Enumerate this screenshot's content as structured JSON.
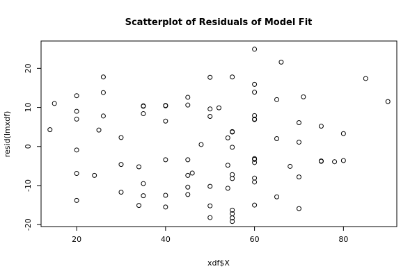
{
  "chart_data": {
    "type": "scatter",
    "title": "Scatterplot of Residuals of Model Fit",
    "xlabel": "xdf$X",
    "ylabel": "resid(lmxdf)",
    "xlim": [
      12,
      92
    ],
    "ylim": [
      -20.5,
      27
    ],
    "xticks": [
      20,
      40,
      60,
      80
    ],
    "yticks": [
      -20,
      -10,
      0,
      10,
      20
    ],
    "grid": false,
    "legend": "none",
    "point_color": "#000000",
    "points": [
      {
        "x": 14,
        "y": 4.3
      },
      {
        "x": 15,
        "y": 11
      },
      {
        "x": 20,
        "y": 13
      },
      {
        "x": 20,
        "y": 9
      },
      {
        "x": 20,
        "y": 7
      },
      {
        "x": 20,
        "y": -0.9
      },
      {
        "x": 20,
        "y": -6.9
      },
      {
        "x": 20,
        "y": -13.8
      },
      {
        "x": 24,
        "y": -7.4
      },
      {
        "x": 25,
        "y": 4.2
      },
      {
        "x": 26,
        "y": 17.8
      },
      {
        "x": 26,
        "y": 13.8
      },
      {
        "x": 26,
        "y": 7.8
      },
      {
        "x": 30,
        "y": 2.3
      },
      {
        "x": 30,
        "y": -4.6
      },
      {
        "x": 30,
        "y": -11.7
      },
      {
        "x": 34,
        "y": -5.2
      },
      {
        "x": 34,
        "y": -15.1
      },
      {
        "x": 35,
        "y": 10.4
      },
      {
        "x": 35,
        "y": 10.3
      },
      {
        "x": 35,
        "y": 8.4
      },
      {
        "x": 35,
        "y": -9.5
      },
      {
        "x": 35,
        "y": -12.6
      },
      {
        "x": 40,
        "y": 10.5
      },
      {
        "x": 40,
        "y": 10.4
      },
      {
        "x": 40,
        "y": 6.5
      },
      {
        "x": 40,
        "y": -3.4
      },
      {
        "x": 40,
        "y": -12.5
      },
      {
        "x": 40,
        "y": -15.5
      },
      {
        "x": 45,
        "y": 12.6
      },
      {
        "x": 45,
        "y": 10.6
      },
      {
        "x": 45,
        "y": -3.4
      },
      {
        "x": 45,
        "y": -7.4
      },
      {
        "x": 45,
        "y": -10.4
      },
      {
        "x": 45,
        "y": -12.3
      },
      {
        "x": 46,
        "y": -6.8
      },
      {
        "x": 48,
        "y": 0.5
      },
      {
        "x": 50,
        "y": 17.7
      },
      {
        "x": 50,
        "y": 9.6
      },
      {
        "x": 50,
        "y": 7.7
      },
      {
        "x": 50,
        "y": -10.2
      },
      {
        "x": 50,
        "y": -15.2
      },
      {
        "x": 50,
        "y": -18.2
      },
      {
        "x": 52,
        "y": 9.9
      },
      {
        "x": 54,
        "y": 2.2
      },
      {
        "x": 54,
        "y": -4.8
      },
      {
        "x": 54,
        "y": -10.7
      },
      {
        "x": 55,
        "y": 17.8
      },
      {
        "x": 55,
        "y": 3.8
      },
      {
        "x": 55,
        "y": 3.7
      },
      {
        "x": 55,
        "y": -0.2
      },
      {
        "x": 55,
        "y": -7.2
      },
      {
        "x": 55,
        "y": -8.2
      },
      {
        "x": 55,
        "y": -16.3
      },
      {
        "x": 55,
        "y": -17.2
      },
      {
        "x": 55,
        "y": -18.3
      },
      {
        "x": 55,
        "y": -19.2
      },
      {
        "x": 60,
        "y": 24.9
      },
      {
        "x": 60,
        "y": 15.9
      },
      {
        "x": 60,
        "y": 13.9
      },
      {
        "x": 60,
        "y": 7.9
      },
      {
        "x": 60,
        "y": 7
      },
      {
        "x": 60,
        "y": 6.9
      },
      {
        "x": 60,
        "y": -3.1
      },
      {
        "x": 60,
        "y": -3.3
      },
      {
        "x": 60,
        "y": -4.1
      },
      {
        "x": 60,
        "y": -8.1
      },
      {
        "x": 60,
        "y": -9.1
      },
      {
        "x": 60,
        "y": -15
      },
      {
        "x": 65,
        "y": 12
      },
      {
        "x": 65,
        "y": 2
      },
      {
        "x": 65,
        "y": -12.9
      },
      {
        "x": 66,
        "y": 21.6
      },
      {
        "x": 68,
        "y": -5.1
      },
      {
        "x": 70,
        "y": 6.1
      },
      {
        "x": 70,
        "y": 1.1
      },
      {
        "x": 70,
        "y": -7.8
      },
      {
        "x": 70,
        "y": -15.9
      },
      {
        "x": 71,
        "y": 12.7
      },
      {
        "x": 75,
        "y": 5.2
      },
      {
        "x": 75,
        "y": -3.7
      },
      {
        "x": 75,
        "y": -3.8
      },
      {
        "x": 78,
        "y": -3.9
      },
      {
        "x": 80,
        "y": 3.3
      },
      {
        "x": 80,
        "y": -3.6
      },
      {
        "x": 85,
        "y": 17.4
      },
      {
        "x": 90,
        "y": 11.5
      }
    ]
  }
}
